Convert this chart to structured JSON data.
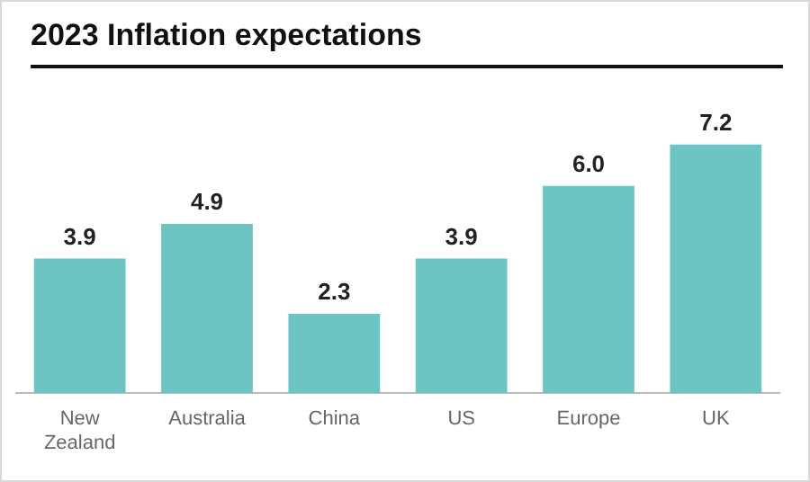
{
  "chart_data": {
    "type": "bar",
    "title": "2023 Inflation expectations",
    "categories": [
      "New Zealand",
      "Australia",
      "China",
      "US",
      "Europe",
      "UK"
    ],
    "values": [
      3.9,
      4.9,
      2.3,
      3.9,
      6.0,
      7.2
    ],
    "color": "#6cc5c2",
    "value_labels": [
      "3.9",
      "4.9",
      "2.3",
      "3.9",
      "6.0",
      "7.2"
    ],
    "grid": false,
    "legend": false
  }
}
